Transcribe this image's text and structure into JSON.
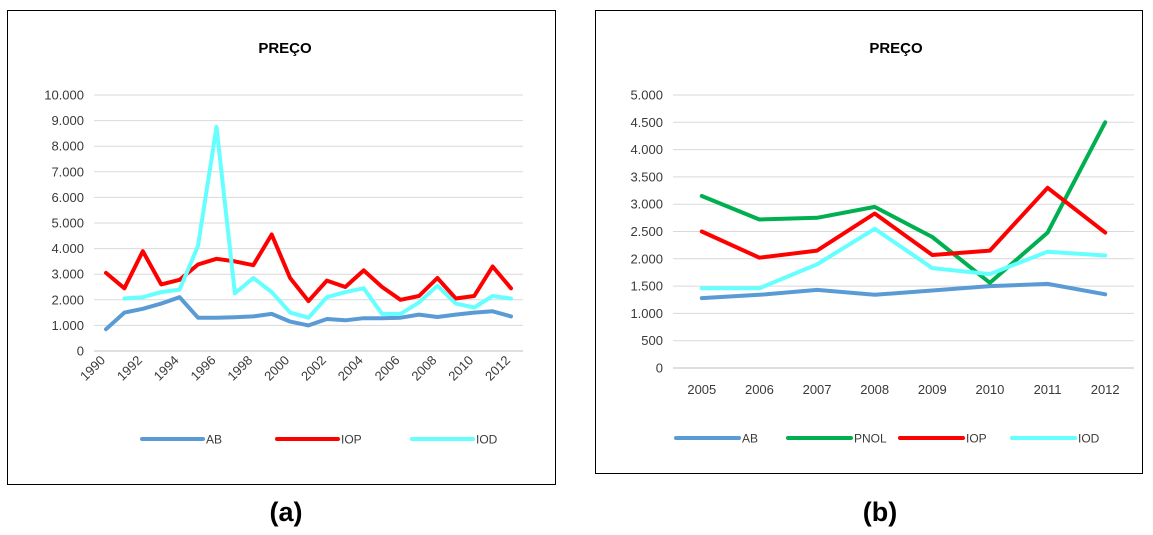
{
  "captions": {
    "a": "(a)",
    "b": "(b)"
  },
  "chart_data": [
    {
      "type": "line",
      "title": "PREÇO",
      "xlabel": "",
      "ylabel": "",
      "ylim": [
        0,
        10000
      ],
      "y_ticks": [
        0,
        1000,
        2000,
        3000,
        4000,
        5000,
        6000,
        7000,
        8000,
        9000,
        10000
      ],
      "y_tick_labels": [
        "0",
        "1.000",
        "2.000",
        "3.000",
        "4.000",
        "5.000",
        "6.000",
        "7.000",
        "8.000",
        "9.000",
        "10.000"
      ],
      "x": [
        1990,
        1991,
        1992,
        1993,
        1994,
        1995,
        1996,
        1997,
        1998,
        1999,
        2000,
        2001,
        2002,
        2003,
        2004,
        2005,
        2006,
        2007,
        2008,
        2009,
        2010,
        2011,
        2012
      ],
      "x_tick_labels": [
        "1990",
        "1992",
        "1994",
        "1996",
        "1998",
        "2000",
        "2002",
        "2004",
        "2006",
        "2008",
        "2010",
        "2012"
      ],
      "grid": true,
      "legend_position": "bottom",
      "series": [
        {
          "name": "AB",
          "color": "#5b9bd5",
          "values": [
            850,
            1500,
            1650,
            1850,
            2100,
            1300,
            1300,
            1320,
            1350,
            1450,
            1150,
            1000,
            1250,
            1200,
            1280,
            1280,
            1300,
            1420,
            1330,
            1420,
            1500,
            1550,
            1350
          ]
        },
        {
          "name": "IOP",
          "color": "#ff0000",
          "values": [
            3050,
            2450,
            3900,
            2600,
            2780,
            3380,
            3600,
            3500,
            3350,
            4550,
            2850,
            1950,
            2750,
            2500,
            3150,
            2500,
            2000,
            2150,
            2850,
            2050,
            2150,
            3300,
            2450
          ]
        },
        {
          "name": "IOD",
          "color": "#66ffff",
          "values": [
            null,
            2050,
            2100,
            2300,
            2400,
            4100,
            8750,
            2250,
            2850,
            2300,
            1500,
            1300,
            2100,
            2300,
            2450,
            1450,
            1450,
            1900,
            2550,
            1850,
            1700,
            2150,
            2050
          ]
        }
      ]
    },
    {
      "type": "line",
      "title": "PREÇO",
      "xlabel": "",
      "ylabel": "",
      "ylim": [
        0,
        5000
      ],
      "y_ticks": [
        0,
        500,
        1000,
        1500,
        2000,
        2500,
        3000,
        3500,
        4000,
        4500,
        5000
      ],
      "y_tick_labels": [
        "0",
        "500",
        "1.000",
        "1.500",
        "2.000",
        "2.500",
        "3.000",
        "3.500",
        "4.000",
        "4.500",
        "5.000"
      ],
      "categories": [
        "2005",
        "2006",
        "2007",
        "2008",
        "2009",
        "2010",
        "2011",
        "2012"
      ],
      "grid": true,
      "legend_position": "bottom",
      "series": [
        {
          "name": "AB",
          "color": "#5b9bd5",
          "values": [
            1280,
            1340,
            1430,
            1340,
            1420,
            1500,
            1540,
            1350
          ]
        },
        {
          "name": "PNOL",
          "color": "#00b050",
          "values": [
            3150,
            2720,
            2750,
            2950,
            2400,
            1560,
            2480,
            4500
          ]
        },
        {
          "name": "IOP",
          "color": "#ff0000",
          "values": [
            2500,
            2020,
            2150,
            2830,
            2070,
            2150,
            3300,
            2480
          ]
        },
        {
          "name": "IOD",
          "color": "#66ffff",
          "values": [
            1460,
            1460,
            1900,
            2550,
            1830,
            1720,
            2130,
            2060
          ]
        }
      ]
    }
  ]
}
